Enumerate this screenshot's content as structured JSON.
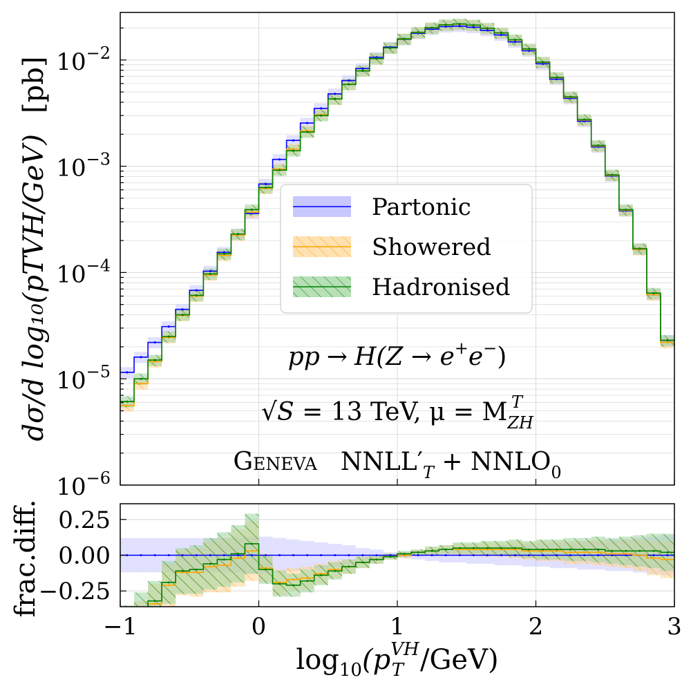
{
  "chart_data": [
    {
      "type": "line",
      "panel": "main",
      "title": "",
      "xlabel": "",
      "ylabel": "dσ/d log₁₀(p_T^{VH}/GeV)   [pb]",
      "ylabel_text": "dσ/d log₁₀(pTVH/GeV)",
      "ylabel_unit": "[pb]",
      "xlim": [
        -1,
        3
      ],
      "ylim": [
        1e-06,
        0.028
      ],
      "yscale": "log",
      "grid": true,
      "legend_placement": "center",
      "x_ticks": [
        "−1",
        "0",
        "1",
        "2",
        "3"
      ],
      "y_ticks": [
        {
          "value": 1e-06,
          "base": "10",
          "exp": "−6"
        },
        {
          "value": 1e-05,
          "base": "10",
          "exp": "−5"
        },
        {
          "value": 0.0001,
          "base": "10",
          "exp": "−4"
        },
        {
          "value": 0.001,
          "base": "10",
          "exp": "−3"
        },
        {
          "value": 0.01,
          "base": "10",
          "exp": "−2"
        }
      ],
      "bin_edges": [
        -1.0,
        -0.9,
        -0.8,
        -0.7,
        -0.6,
        -0.5,
        -0.4,
        -0.3,
        -0.2,
        -0.1,
        0.0,
        0.1,
        0.2,
        0.3,
        0.4,
        0.5,
        0.6,
        0.7,
        0.8,
        0.9,
        1.0,
        1.1,
        1.2,
        1.3,
        1.4,
        1.5,
        1.6,
        1.7,
        1.8,
        1.9,
        2.0,
        2.1,
        2.2,
        2.3,
        2.4,
        2.5,
        2.6,
        2.7,
        2.8,
        2.9,
        3.0
      ],
      "series": [
        {
          "name": "Partonic",
          "color": "#0000ff",
          "band_color": "#c8c8ff",
          "band_rel": 0.12,
          "values": [
            1.15e-05,
            1.6e-05,
            2.2e-05,
            3.1e-05,
            4.5e-05,
            6.8e-05,
            0.000103,
            0.000155,
            0.00023,
            0.00036,
            0.00068,
            0.00116,
            0.00175,
            0.00255,
            0.0035,
            0.0048,
            0.0064,
            0.0083,
            0.0106,
            0.0132,
            0.0156,
            0.0178,
            0.0195,
            0.0206,
            0.0208,
            0.0203,
            0.019,
            0.0172,
            0.0148,
            0.0122,
            0.0092,
            0.0066,
            0.00435,
            0.00265,
            0.00152,
            0.00081,
            0.00038,
            0.000165,
            6.2e-05,
            2.3e-05
          ]
        },
        {
          "name": "Showered",
          "color": "#ffa500",
          "band_color": "#ffd699",
          "band_rel": 0.12,
          "values": [
            5.6e-06,
            9e-06,
            1.45e-05,
            2.45e-05,
            3.95e-05,
            6e-05,
            9.5e-05,
            0.000145,
            0.000225,
            0.00037,
            0.00062,
            0.00094,
            0.00145,
            0.00215,
            0.00305,
            0.0043,
            0.0059,
            0.0079,
            0.0103,
            0.013,
            0.0157,
            0.0181,
            0.02,
            0.0213,
            0.0217,
            0.0212,
            0.0198,
            0.0179,
            0.0154,
            0.0126,
            0.0095,
            0.0068,
            0.00445,
            0.00272,
            0.00155,
            0.00082,
            0.000385,
            0.000165,
            6.2e-05,
            2.2e-05
          ]
        },
        {
          "name": "Hadronised",
          "color": "#008000",
          "band_color": "#9fd49f",
          "band_rel": 0.12,
          "values": [
            6.1e-06,
            1e-05,
            1.5e-05,
            2.5e-05,
            4e-05,
            6.1e-05,
            9.7e-05,
            0.00015,
            0.00023,
            0.00039,
            0.00063,
            0.00092,
            0.0014,
            0.0021,
            0.003,
            0.0043,
            0.0059,
            0.0079,
            0.0103,
            0.013,
            0.0158,
            0.0182,
            0.0201,
            0.0214,
            0.0218,
            0.0213,
            0.0199,
            0.018,
            0.0155,
            0.0127,
            0.00955,
            0.00685,
            0.0045,
            0.00275,
            0.00157,
            0.00083,
            0.00039,
            0.000168,
            6.4e-05,
            2.3e-05
          ]
        }
      ],
      "annotations": [
        "pp → H(Z → e⁺e⁻)",
        "√S = 13 TeV,  μ = M_ZH^T",
        "Geneva   NNLL′_T + NNLO₀"
      ],
      "annotation_process": {
        "pp": "pp",
        "arrow": "→",
        "rest": "H(Z → e",
        "exp": "+",
        "e2": "e",
        "exp2": "−",
        "close": ")"
      },
      "annotation_energy": {
        "root": "√",
        "S": "S",
        "eq": " = 13 TeV,  μ = M",
        "sub": "ZH",
        "sup": "T"
      },
      "annotation_generator": {
        "name": "Geneva",
        "formula": "NNLL′",
        "formula_sub": "T",
        "plus": " + NNLO",
        "plus_sub": "0"
      }
    },
    {
      "type": "line",
      "panel": "ratio",
      "title": "",
      "xlabel": "log₁₀(p_T^{VH}/GeV)",
      "xlabel_parts": {
        "prefix": "log",
        "sub": "10",
        "open": "(p",
        "sup": "VH",
        "sub2": "T",
        "suffix": "/GeV)"
      },
      "ylabel": "frac.diff.",
      "xlim": [
        -1,
        3
      ],
      "ylim": [
        -0.36,
        0.36
      ],
      "grid": true,
      "x_ticks": [
        "−1",
        "0",
        "1",
        "2",
        "3"
      ],
      "y_ticks": [
        {
          "value": -0.25,
          "label": "−0.25"
        },
        {
          "value": 0.0,
          "label": "0.00"
        },
        {
          "value": 0.25,
          "label": "0.25"
        }
      ],
      "series": [
        {
          "name": "Partonic",
          "color": "#0000ff",
          "band_color": "#c8c8ff",
          "values": [
            0,
            0,
            0,
            0,
            0,
            0,
            0,
            0,
            0,
            0,
            0,
            0,
            0,
            0,
            0,
            0,
            0,
            0,
            0,
            0,
            0,
            0,
            0,
            0,
            0,
            0,
            0,
            0,
            0,
            0,
            0,
            0,
            0,
            0,
            0,
            0,
            0,
            0,
            0,
            0
          ],
          "band": [
            0.12,
            0.12,
            0.12,
            0.12,
            0.12,
            0.12,
            0.12,
            0.12,
            0.12,
            0.13,
            0.13,
            0.12,
            0.11,
            0.1,
            0.09,
            0.08,
            0.07,
            0.05,
            0.04,
            0.02,
            0.02,
            0.03,
            0.04,
            0.05,
            0.05,
            0.06,
            0.06,
            0.07,
            0.07,
            0.08,
            0.08,
            0.09,
            0.09,
            0.1,
            0.1,
            0.11,
            0.11,
            0.12,
            0.13,
            0.14
          ]
        },
        {
          "name": "Showered",
          "color": "#ffa500",
          "band_color": "#ffd699",
          "values": [
            -0.52,
            -0.44,
            -0.34,
            -0.21,
            -0.12,
            -0.12,
            -0.08,
            -0.07,
            -0.02,
            0.03,
            -0.09,
            -0.19,
            -0.17,
            -0.16,
            -0.13,
            -0.1,
            -0.08,
            -0.05,
            -0.03,
            -0.01,
            0.0,
            0.02,
            0.03,
            0.04,
            0.04,
            0.04,
            0.04,
            0.04,
            0.04,
            0.03,
            0.03,
            0.03,
            0.02,
            0.02,
            0.02,
            0.01,
            0.01,
            0.0,
            -0.02,
            -0.03
          ],
          "band": [
            0.12,
            0.12,
            0.14,
            0.15,
            0.16,
            0.17,
            0.18,
            0.19,
            0.2,
            0.21,
            0.1,
            0.09,
            0.08,
            0.08,
            0.07,
            0.06,
            0.05,
            0.04,
            0.03,
            0.02,
            0.02,
            0.02,
            0.03,
            0.03,
            0.04,
            0.04,
            0.05,
            0.05,
            0.06,
            0.06,
            0.07,
            0.07,
            0.08,
            0.08,
            0.09,
            0.09,
            0.1,
            0.11,
            0.12,
            0.13
          ]
        },
        {
          "name": "Hadronised",
          "color": "#008000",
          "band_color": "#9fd49f",
          "values": [
            -0.47,
            -0.38,
            -0.32,
            -0.19,
            -0.11,
            -0.1,
            -0.06,
            -0.03,
            0.01,
            0.08,
            -0.1,
            -0.2,
            -0.21,
            -0.18,
            -0.14,
            -0.11,
            -0.08,
            -0.05,
            -0.03,
            -0.01,
            0.01,
            0.02,
            0.03,
            0.04,
            0.05,
            0.05,
            0.05,
            0.05,
            0.05,
            0.04,
            0.04,
            0.04,
            0.04,
            0.04,
            0.04,
            0.03,
            0.03,
            0.03,
            0.03,
            0.02
          ],
          "band": [
            0.12,
            0.12,
            0.14,
            0.15,
            0.16,
            0.17,
            0.18,
            0.19,
            0.2,
            0.21,
            0.1,
            0.09,
            0.08,
            0.08,
            0.07,
            0.06,
            0.05,
            0.04,
            0.03,
            0.02,
            0.02,
            0.02,
            0.03,
            0.03,
            0.04,
            0.04,
            0.05,
            0.05,
            0.06,
            0.06,
            0.07,
            0.07,
            0.08,
            0.08,
            0.09,
            0.09,
            0.1,
            0.11,
            0.12,
            0.13
          ]
        }
      ]
    }
  ]
}
